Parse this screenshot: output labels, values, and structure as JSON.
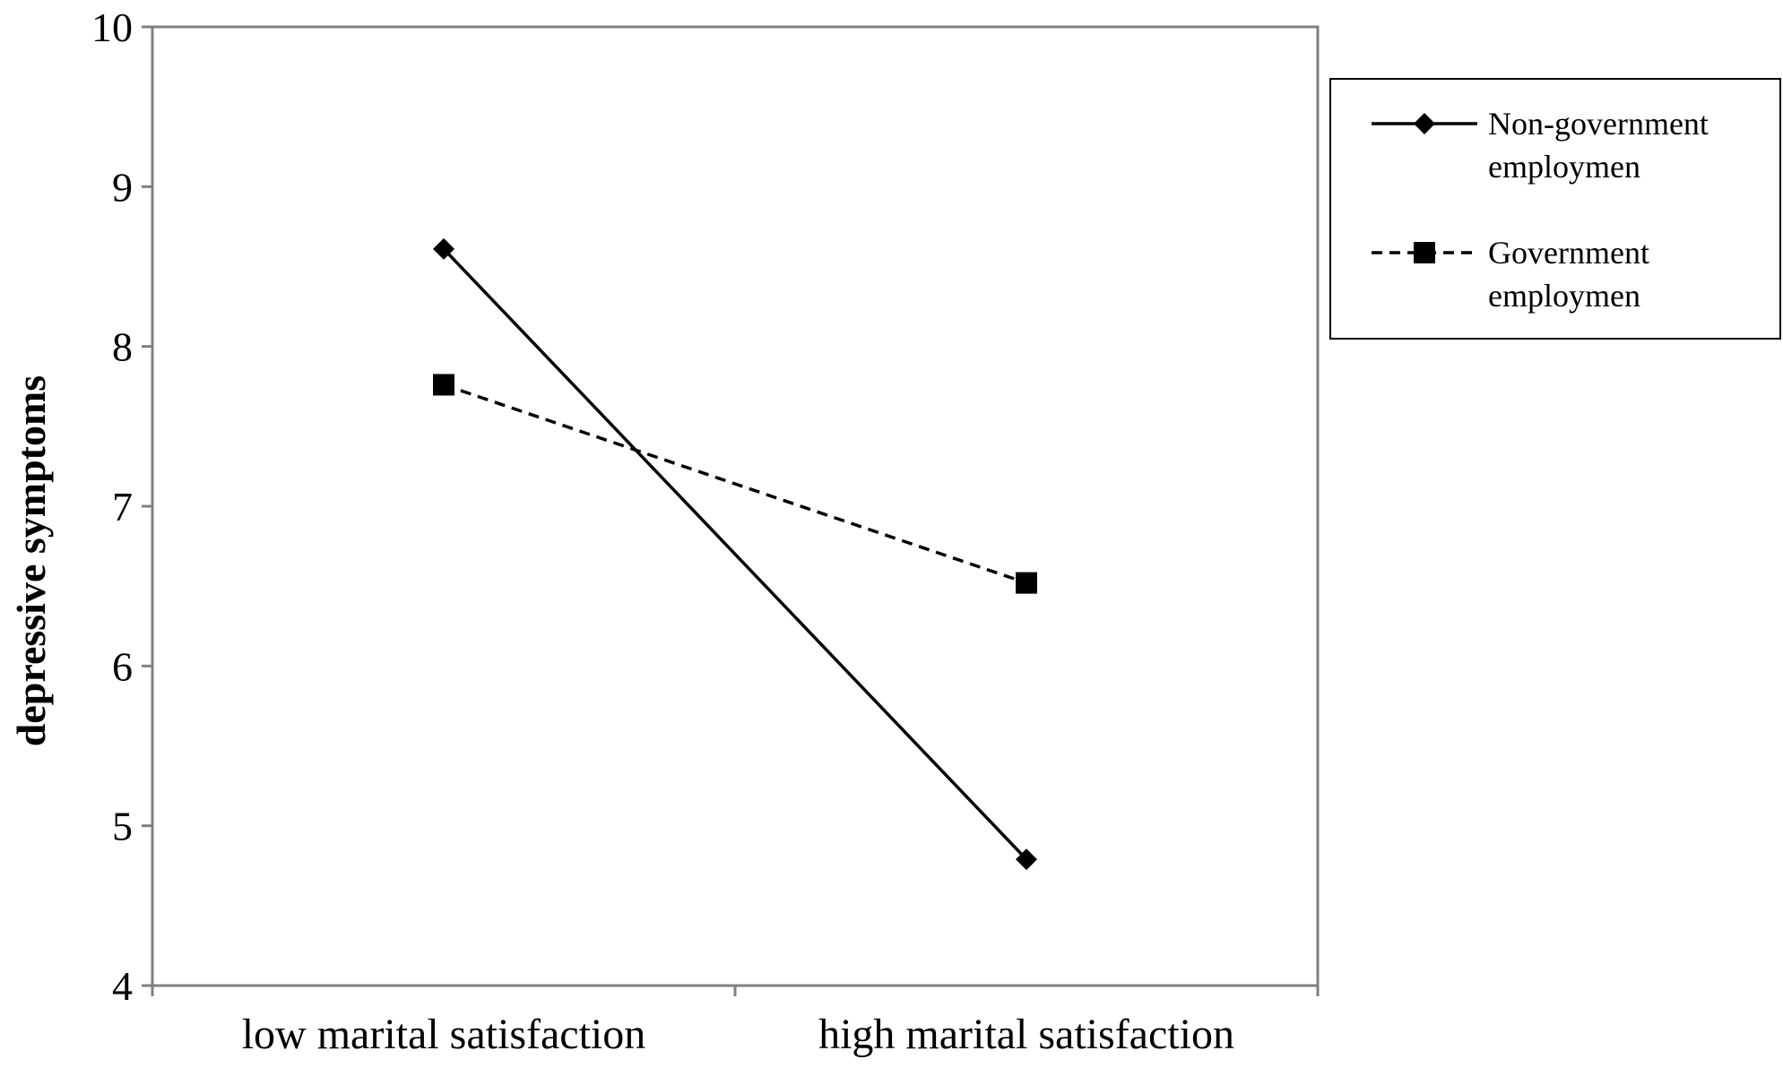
{
  "chart_data": {
    "type": "line",
    "title": "",
    "xlabel": "",
    "ylabel": "depressive symptoms",
    "categories": [
      "low marital satisfaction",
      "high marital satisfaction"
    ],
    "ylim": [
      4,
      10
    ],
    "yticks": [
      4,
      5,
      6,
      7,
      8,
      9,
      10
    ],
    "grid": false,
    "legend_position": "right",
    "series": [
      {
        "name_lines": [
          "Non-government",
          "employmen"
        ],
        "values": [
          8.61,
          4.79
        ],
        "marker": "diamond",
        "line_style": "solid",
        "color": "#000000"
      },
      {
        "name_lines": [
          "Government",
          "employmen"
        ],
        "values": [
          7.76,
          6.52
        ],
        "marker": "square",
        "line_style": "dashed",
        "color": "#000000"
      }
    ]
  }
}
